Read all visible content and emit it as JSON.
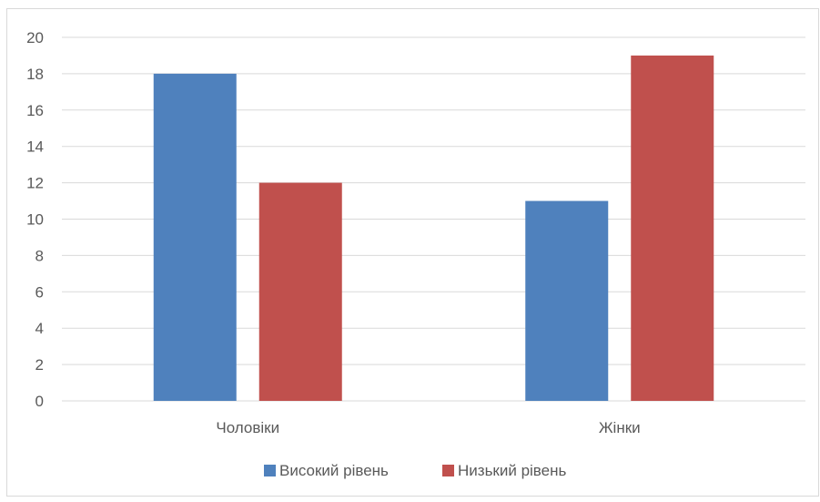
{
  "chart_data": {
    "type": "bar",
    "categories": [
      "Чоловіки",
      "Жінки"
    ],
    "series": [
      {
        "name": "Високий рівень",
        "values": [
          18,
          11
        ],
        "color": "#4f81bd"
      },
      {
        "name": "Низький рівень",
        "values": [
          12,
          19
        ],
        "color": "#c0504d"
      }
    ],
    "title": "",
    "xlabel": "",
    "ylabel": "",
    "ylim": [
      0,
      20
    ],
    "yticks": [
      0,
      2,
      4,
      6,
      8,
      10,
      12,
      14,
      16,
      18,
      20
    ],
    "grid": true,
    "legend_position": "bottom"
  }
}
